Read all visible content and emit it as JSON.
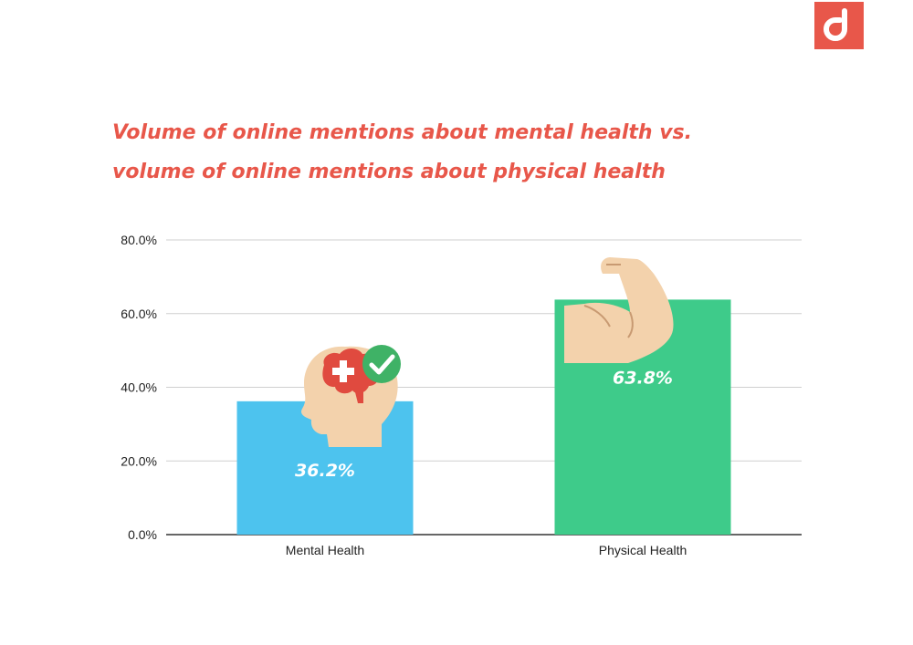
{
  "brand": {
    "logo_color": "#e8574a",
    "logo_icon": "brand-logo-icon"
  },
  "title": {
    "line1": "Volume of online mentions about mental health vs.",
    "line2": "volume of online mentions about physical health",
    "color": "#e8574a"
  },
  "chart_data": {
    "type": "bar",
    "title": "Volume of online mentions about mental health vs. volume of online mentions about physical health",
    "xlabel": "",
    "ylabel": "",
    "categories": [
      "Mental Health",
      "Physical Health"
    ],
    "values": [
      36.2,
      63.8
    ],
    "data_labels": [
      "36.2%",
      "63.8%"
    ],
    "colors": [
      "#4dc3ee",
      "#3ecb8a"
    ],
    "icons": [
      "head-brain-checkmark-icon",
      "flexed-arm-icon"
    ],
    "ylim": [
      0,
      80
    ],
    "yticks": [
      0,
      20,
      40,
      60,
      80
    ],
    "ytick_labels": [
      "0.0%",
      "20.0%",
      "40.0%",
      "60.0%",
      "80.0%"
    ],
    "grid": true,
    "legend": "none"
  }
}
